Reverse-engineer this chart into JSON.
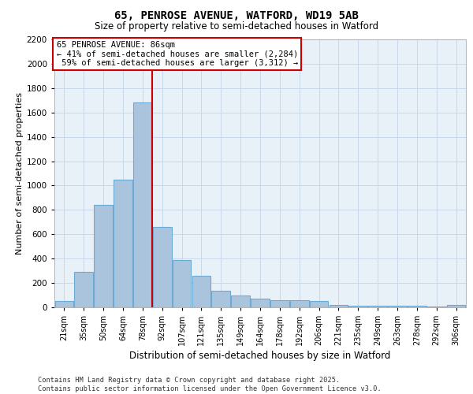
{
  "title_line1": "65, PENROSE AVENUE, WATFORD, WD19 5AB",
  "title_line2": "Size of property relative to semi-detached houses in Watford",
  "xlabel": "Distribution of semi-detached houses by size in Watford",
  "ylabel": "Number of semi-detached properties",
  "bins": [
    "21sqm",
    "35sqm",
    "50sqm",
    "64sqm",
    "78sqm",
    "92sqm",
    "107sqm",
    "121sqm",
    "135sqm",
    "149sqm",
    "164sqm",
    "178sqm",
    "192sqm",
    "206sqm",
    "221sqm",
    "235sqm",
    "249sqm",
    "263sqm",
    "278sqm",
    "292sqm",
    "306sqm"
  ],
  "bar_heights": [
    50,
    290,
    840,
    1050,
    1680,
    660,
    390,
    260,
    135,
    100,
    70,
    60,
    60,
    55,
    20,
    10,
    10,
    10,
    10,
    5,
    20
  ],
  "bar_color": "#aac4de",
  "bar_edge_color": "#6aaad4",
  "grid_color": "#c8d8ea",
  "bg_color": "#e8f0f8",
  "red_line_color": "#cc0000",
  "annotation_box_edge": "#cc0000",
  "property_sqm": 86,
  "pct_smaller": 41,
  "count_smaller": 2284,
  "pct_larger": 59,
  "count_larger": 3312,
  "ylim": [
    0,
    2200
  ],
  "yticks": [
    0,
    200,
    400,
    600,
    800,
    1000,
    1200,
    1400,
    1600,
    1800,
    2000,
    2200
  ],
  "red_line_x": 4.5,
  "footer_line1": "Contains HM Land Registry data © Crown copyright and database right 2025.",
  "footer_line2": "Contains public sector information licensed under the Open Government Licence v3.0."
}
